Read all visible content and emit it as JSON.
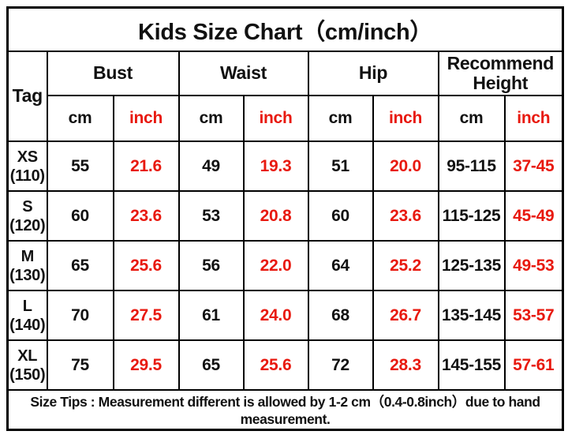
{
  "title": "Kids Size Chart（cm/inch）",
  "colors": {
    "inch_red": "#e8190f",
    "text_black": "#111111",
    "border_black": "#000000"
  },
  "table": {
    "tag_header": "Tag",
    "columns": [
      {
        "group": "Bust",
        "units": [
          "cm",
          "inch"
        ]
      },
      {
        "group": "Waist",
        "units": [
          "cm",
          "inch"
        ]
      },
      {
        "group": "Hip",
        "units": [
          "cm",
          "inch"
        ]
      },
      {
        "group": "Recommend Height",
        "units": [
          "cm",
          "inch"
        ]
      }
    ],
    "rows": [
      {
        "tag": "XS",
        "tag_sub": "(110)",
        "values": [
          "55",
          "21.6",
          "49",
          "19.3",
          "51",
          "20.0",
          "95-115",
          "37-45"
        ]
      },
      {
        "tag": "S",
        "tag_sub": "(120)",
        "values": [
          "60",
          "23.6",
          "53",
          "20.8",
          "60",
          "23.6",
          "115-125",
          "45-49"
        ]
      },
      {
        "tag": "M",
        "tag_sub": "(130)",
        "values": [
          "65",
          "25.6",
          "56",
          "22.0",
          "64",
          "25.2",
          "125-135",
          "49-53"
        ]
      },
      {
        "tag": "L",
        "tag_sub": "(140)",
        "values": [
          "70",
          "27.5",
          "61",
          "24.0",
          "68",
          "26.7",
          "135-145",
          "53-57"
        ]
      },
      {
        "tag": "XL",
        "tag_sub": "(150)",
        "values": [
          "75",
          "29.5",
          "65",
          "25.6",
          "72",
          "28.3",
          "145-155",
          "57-61"
        ]
      }
    ]
  },
  "footer": {
    "tips": "Size Tips : Measurement different is allowed by 1-2 cm（0.4-0.8inch）due to hand measurement."
  }
}
